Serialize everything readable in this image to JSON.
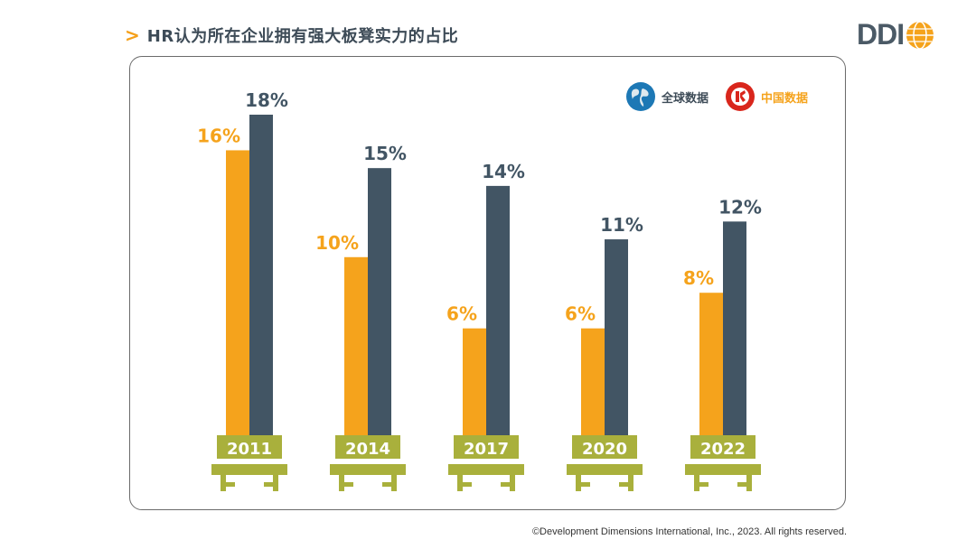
{
  "header": {
    "chevron": ">",
    "title": "HR认为所在企业拥有强大板凳实力的占比"
  },
  "logo": {
    "text": "DDI"
  },
  "legend": {
    "global_label": "全球数据",
    "china_label": "中国数据"
  },
  "colors": {
    "china": "#f5a31c",
    "global": "#425564",
    "bench": "#a9b03c",
    "title": "#3d4b57"
  },
  "chart_data": {
    "type": "bar",
    "categories": [
      "2011",
      "2014",
      "2017",
      "2020",
      "2022"
    ],
    "series": [
      {
        "name": "中国数据",
        "values": [
          16,
          10,
          6,
          6,
          8
        ],
        "labels": [
          "16%",
          "10%",
          "6%",
          "6%",
          "8%"
        ]
      },
      {
        "name": "全球数据",
        "values": [
          18,
          15,
          14,
          11,
          12
        ],
        "labels": [
          "18%",
          "15%",
          "14%",
          "11%",
          "12%"
        ]
      }
    ],
    "title": "HR认为所在企业拥有强大板凳实力的占比",
    "xlabel": "",
    "ylabel": "",
    "ylim": [
      0,
      18
    ],
    "grid": false,
    "legend_position": "top-right"
  },
  "footer": {
    "copyright": "©Development Dimensions International, Inc., 2023. All rights reserved."
  }
}
